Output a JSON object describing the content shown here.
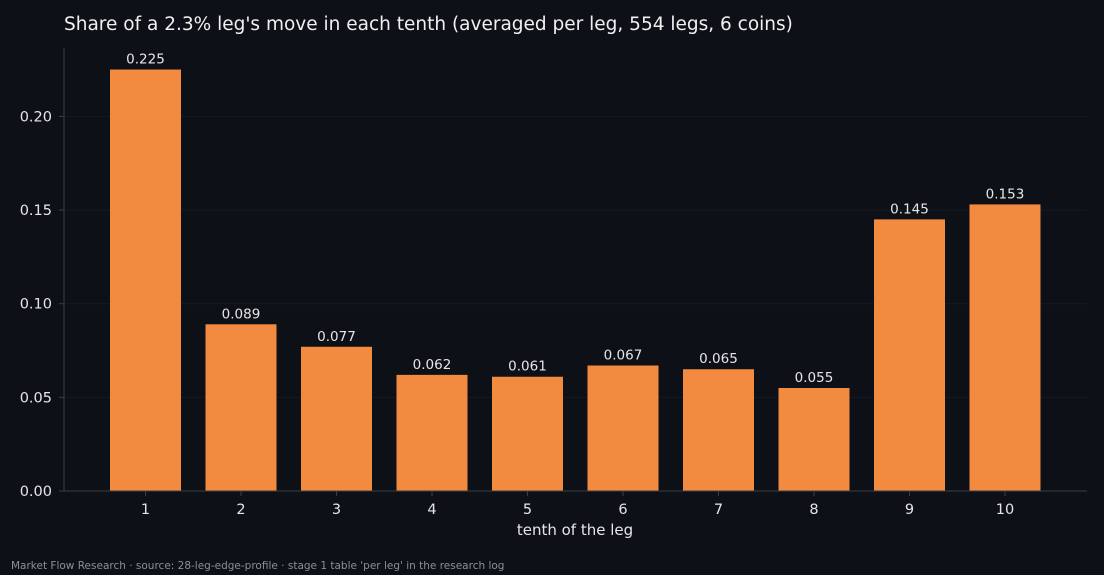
{
  "chart_data": {
    "type": "bar",
    "title": "Share of a 2.3% leg's move in each tenth (averaged per leg, 554 legs, 6 coins)",
    "xlabel": "tenth of the leg",
    "ylabel": "",
    "categories": [
      "1",
      "2",
      "3",
      "4",
      "5",
      "6",
      "7",
      "8",
      "9",
      "10"
    ],
    "values": [
      0.225,
      0.089,
      0.077,
      0.062,
      0.061,
      0.067,
      0.065,
      0.055,
      0.145,
      0.153
    ],
    "value_labels": [
      "0.225",
      "0.089",
      "0.077",
      "0.062",
      "0.061",
      "0.067",
      "0.065",
      "0.055",
      "0.145",
      "0.153"
    ],
    "ylim": [
      0,
      0.2365
    ],
    "yticks": [
      0,
      0.05,
      0.1,
      0.15,
      0.2
    ],
    "ytick_labels": [
      "0.00",
      "0.05",
      "0.10",
      "0.15",
      "0.20"
    ],
    "grid": "horizontal, faint",
    "legend": "none",
    "colors": {
      "bar": "#f28a40",
      "background": "#0d1017",
      "axis": "#3a3e46",
      "grid": "#161a22",
      "text": "#e6e6e6",
      "footer": "#8a8f98"
    }
  },
  "footer": "Market Flow Research · source: 28-leg-edge-profile · stage 1 table 'per leg' in the research log"
}
